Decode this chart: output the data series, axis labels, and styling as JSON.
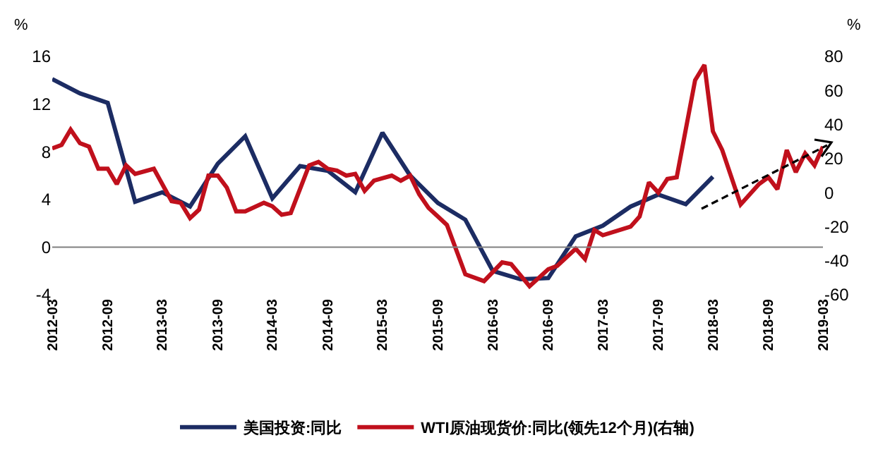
{
  "chart_data": {
    "type": "line",
    "ylabel": "%",
    "y2label": "%",
    "xlim": [
      "2012-03",
      "2019-03"
    ],
    "xticks": [
      "2012-03",
      "2012-09",
      "2013-03",
      "2013-09",
      "2014-03",
      "2014-09",
      "2015-03",
      "2015-09",
      "2016-03",
      "2016-09",
      "2017-03",
      "2017-09",
      "2018-03",
      "2018-09",
      "2019-03"
    ],
    "ylim": [
      -4,
      16
    ],
    "yticks": [
      -4,
      0,
      4,
      8,
      12,
      16
    ],
    "y2lim": [
      -60,
      80
    ],
    "y2ticks": [
      -60,
      -40,
      -20,
      0,
      20,
      40,
      60,
      80
    ],
    "ref_lines": [
      {
        "axis": "y",
        "value": 0,
        "color": "#808080"
      }
    ],
    "grid": false,
    "legend": "bottom",
    "marker": "none",
    "line_style": "solid",
    "series": [
      {
        "name": "美国投资:同比",
        "color": "#1c2c63",
        "x": [
          "2012-03",
          "2012-06",
          "2012-09",
          "2012-12",
          "2013-03",
          "2013-06",
          "2013-09",
          "2013-12",
          "2014-03",
          "2014-06",
          "2014-09",
          "2014-12",
          "2015-03",
          "2015-06",
          "2015-09",
          "2015-12",
          "2016-03",
          "2016-06",
          "2016-09",
          "2016-12",
          "2017-03",
          "2017-06",
          "2017-09",
          "2017-12",
          "2018-03"
        ],
        "values": [
          14.1,
          12.9,
          12.1,
          3.8,
          4.6,
          3.4,
          7.0,
          9.3,
          4.1,
          6.8,
          6.4,
          4.6,
          9.6,
          6.0,
          3.7,
          2.3,
          -2.0,
          -2.7,
          -2.6,
          0.9,
          1.8,
          3.4,
          4.4,
          3.6,
          5.9
        ]
      },
      {
        "name": "WTI原油现货价:同比(领先12个月)(右轴)",
        "color": "#c0101c",
        "axis": "y2",
        "x": [
          "2012-03",
          "2012-04",
          "2012-05",
          "2012-06",
          "2012-07",
          "2012-08",
          "2012-09",
          "2012-10",
          "2012-11",
          "2012-12",
          "2013-02",
          "2013-04",
          "2013-05",
          "2013-06",
          "2013-07",
          "2013-08",
          "2013-09",
          "2013-10",
          "2013-11",
          "2013-12",
          "2014-02",
          "2014-03",
          "2014-04",
          "2014-05",
          "2014-07",
          "2014-08",
          "2014-09",
          "2014-10",
          "2014-11",
          "2014-12",
          "2015-01",
          "2015-02",
          "2015-04",
          "2015-05",
          "2015-06",
          "2015-07",
          "2015-08",
          "2015-09",
          "2015-10",
          "2015-12",
          "2016-02",
          "2016-04",
          "2016-05",
          "2016-07",
          "2016-09",
          "2016-10",
          "2016-12",
          "2017-01",
          "2017-02",
          "2017-03",
          "2017-06",
          "2017-07",
          "2017-08",
          "2017-09",
          "2017-10",
          "2017-11",
          "2018-01",
          "2018-02",
          "2018-03",
          "2018-04",
          "2018-06",
          "2018-08",
          "2018-09",
          "2018-10",
          "2018-11",
          "2018-12",
          "2019-01",
          "2019-02",
          "2019-03"
        ],
        "values": [
          26,
          28,
          37,
          29,
          27,
          14,
          14,
          5,
          16,
          11,
          14,
          -5,
          -6,
          -15,
          -10,
          10,
          10,
          3,
          -11,
          -11,
          -6,
          -8,
          -13,
          -12,
          16,
          18,
          14,
          13,
          10,
          11,
          1,
          7,
          10,
          7,
          10,
          -1,
          -9,
          -14,
          -19,
          -48,
          -52,
          -41,
          -42,
          -55,
          -45,
          -43,
          -33,
          -39,
          -22,
          -25,
          -20,
          -14,
          6,
          0,
          8,
          9,
          66,
          75,
          36,
          25,
          -7,
          5,
          9,
          2,
          25,
          12,
          23,
          16,
          27
        ]
      }
    ]
  }
}
